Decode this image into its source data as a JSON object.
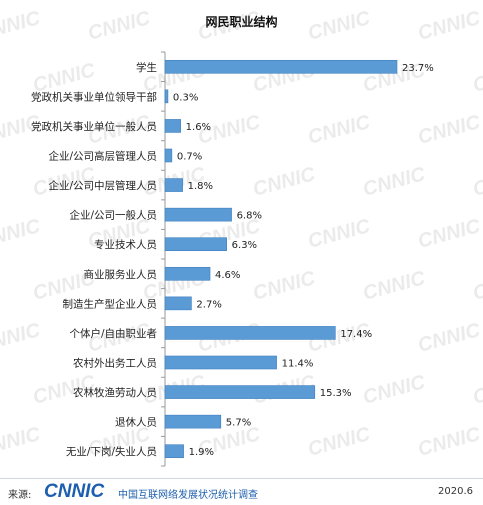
{
  "chart_data": {
    "type": "bar",
    "orientation": "horizontal",
    "title": "网民职业结构",
    "categories": [
      "学生",
      "党政机关事业单位领导干部",
      "党政机关事业单位一般人员",
      "企业/公司高层管理人员",
      "企业/公司中层管理人员",
      "企业/公司一般人员",
      "专业技术人员",
      "商业服务业人员",
      "制造生产型企业人员",
      "个体户/自由职业者",
      "农村外出务工人员",
      "农林牧渔劳动人员",
      "退休人员",
      "无业/下岗/失业人员"
    ],
    "values": [
      23.7,
      0.3,
      1.6,
      0.7,
      1.8,
      6.8,
      6.3,
      4.6,
      2.7,
      17.4,
      11.4,
      15.3,
      5.7,
      1.9
    ],
    "value_labels": [
      "23.7%",
      "0.3%",
      "1.6%",
      "0.7%",
      "1.8%",
      "6.8%",
      "6.3%",
      "4.6%",
      "2.7%",
      "17.4%",
      "11.4%",
      "15.3%",
      "5.7%",
      "1.9%"
    ],
    "xlim": [
      0,
      27
    ],
    "grid": false,
    "legend": "none",
    "bar_color": "#5b9bd5",
    "bar_stroke": "#3f7fbf"
  },
  "watermark": "CNNIC",
  "footer": {
    "source_label": "来源:",
    "logo_text": "CNNIC",
    "org_name": "中国互联网络发展状况统计调查",
    "date": "2020.6"
  },
  "colors": {
    "axis": "#999999",
    "text": "#222222",
    "brand": "#1d5fae"
  }
}
